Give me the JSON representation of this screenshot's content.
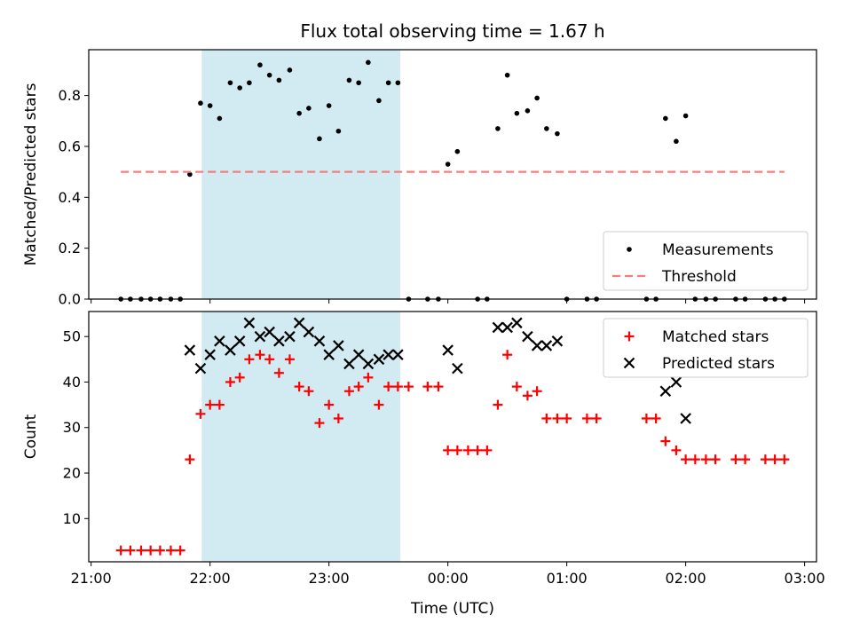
{
  "chart_data": {
    "title": "Flux total observing time = 1.67 h",
    "xlabel": "Time (UTC)",
    "x_ticks": [
      "21:00",
      "22:00",
      "23:00",
      "00:00",
      "01:00",
      "02:00",
      "03:00"
    ],
    "x_range_hours": [
      20.98,
      27.1
    ],
    "highlight_span_hours": [
      21.93,
      23.6
    ],
    "highlight_color": "#add8e6",
    "panels": [
      {
        "type": "scatter",
        "ylabel": "Matched/Predicted stars",
        "ylim": [
          0,
          0.98
        ],
        "y_ticks": [
          0.0,
          0.2,
          0.4,
          0.6,
          0.8
        ],
        "y_tick_labels": [
          "0.0",
          "0.2",
          "0.4",
          "0.6",
          "0.8"
        ],
        "legend_position": "lower-right",
        "series": [
          {
            "name": "Measurements",
            "marker": "dot",
            "color": "#000000",
            "points": [
              [
                21.25,
                0.0
              ],
              [
                21.33,
                0.0
              ],
              [
                21.42,
                0.0
              ],
              [
                21.5,
                0.0
              ],
              [
                21.58,
                0.0
              ],
              [
                21.67,
                0.0
              ],
              [
                21.75,
                0.0
              ],
              [
                21.83,
                0.49
              ],
              [
                21.92,
                0.77
              ],
              [
                22.0,
                0.76
              ],
              [
                22.08,
                0.71
              ],
              [
                22.17,
                0.85
              ],
              [
                22.25,
                0.83
              ],
              [
                22.33,
                0.85
              ],
              [
                22.42,
                0.92
              ],
              [
                22.5,
                0.88
              ],
              [
                22.58,
                0.86
              ],
              [
                22.67,
                0.9
              ],
              [
                22.75,
                0.73
              ],
              [
                22.83,
                0.75
              ],
              [
                22.92,
                0.63
              ],
              [
                23.0,
                0.76
              ],
              [
                23.08,
                0.66
              ],
              [
                23.17,
                0.86
              ],
              [
                23.25,
                0.85
              ],
              [
                23.33,
                0.93
              ],
              [
                23.42,
                0.78
              ],
              [
                23.5,
                0.85
              ],
              [
                23.58,
                0.85
              ],
              [
                23.67,
                0.0
              ],
              [
                23.83,
                0.0
              ],
              [
                23.92,
                0.0
              ],
              [
                24.0,
                0.53
              ],
              [
                24.08,
                0.58
              ],
              [
                24.25,
                0.0
              ],
              [
                24.33,
                0.0
              ],
              [
                24.42,
                0.67
              ],
              [
                24.5,
                0.88
              ],
              [
                24.58,
                0.73
              ],
              [
                24.67,
                0.74
              ],
              [
                24.75,
                0.79
              ],
              [
                24.83,
                0.67
              ],
              [
                24.92,
                0.65
              ],
              [
                25.0,
                0.0
              ],
              [
                25.17,
                0.0
              ],
              [
                25.25,
                0.0
              ],
              [
                25.67,
                0.0
              ],
              [
                25.75,
                0.0
              ],
              [
                25.83,
                0.71
              ],
              [
                25.92,
                0.62
              ],
              [
                26.0,
                0.72
              ],
              [
                26.08,
                0.0
              ],
              [
                26.17,
                0.0
              ],
              [
                26.25,
                0.0
              ],
              [
                26.42,
                0.0
              ],
              [
                26.5,
                0.0
              ],
              [
                26.67,
                0.0
              ],
              [
                26.75,
                0.0
              ],
              [
                26.83,
                0.0
              ]
            ]
          },
          {
            "name": "Threshold",
            "type": "line",
            "style": "dashed",
            "color": "#f08080",
            "points": [
              [
                21.25,
                0.5
              ],
              [
                26.83,
                0.5
              ]
            ]
          }
        ]
      },
      {
        "type": "scatter",
        "ylabel": "Count",
        "ylim": [
          0.5,
          55.5
        ],
        "y_ticks": [
          10,
          20,
          30,
          40,
          50
        ],
        "y_tick_labels": [
          "10",
          "20",
          "30",
          "40",
          "50"
        ],
        "legend_position": "upper-right",
        "series": [
          {
            "name": "Matched stars",
            "marker": "plus",
            "color": "#ff0000",
            "points": [
              [
                21.25,
                3
              ],
              [
                21.33,
                3
              ],
              [
                21.42,
                3
              ],
              [
                21.5,
                3
              ],
              [
                21.58,
                3
              ],
              [
                21.67,
                3
              ],
              [
                21.75,
                3
              ],
              [
                21.83,
                23
              ],
              [
                21.92,
                33
              ],
              [
                22.0,
                35
              ],
              [
                22.08,
                35
              ],
              [
                22.17,
                40
              ],
              [
                22.25,
                41
              ],
              [
                22.33,
                45
              ],
              [
                22.42,
                46
              ],
              [
                22.5,
                45
              ],
              [
                22.58,
                42
              ],
              [
                22.67,
                45
              ],
              [
                22.75,
                39
              ],
              [
                22.83,
                38
              ],
              [
                22.92,
                31
              ],
              [
                23.0,
                35
              ],
              [
                23.08,
                32
              ],
              [
                23.17,
                38
              ],
              [
                23.25,
                39
              ],
              [
                23.33,
                41
              ],
              [
                23.42,
                35
              ],
              [
                23.5,
                39
              ],
              [
                23.58,
                39
              ],
              [
                23.67,
                39
              ],
              [
                23.83,
                39
              ],
              [
                23.92,
                39
              ],
              [
                24.0,
                25
              ],
              [
                24.08,
                25
              ],
              [
                24.17,
                25
              ],
              [
                24.25,
                25
              ],
              [
                24.33,
                25
              ],
              [
                24.42,
                35
              ],
              [
                24.5,
                46
              ],
              [
                24.58,
                39
              ],
              [
                24.67,
                37
              ],
              [
                24.75,
                38
              ],
              [
                24.83,
                32
              ],
              [
                24.92,
                32
              ],
              [
                25.0,
                32
              ],
              [
                25.17,
                32
              ],
              [
                25.25,
                32
              ],
              [
                25.67,
                32
              ],
              [
                25.75,
                32
              ],
              [
                25.83,
                27
              ],
              [
                25.92,
                25
              ],
              [
                26.0,
                23
              ],
              [
                26.08,
                23
              ],
              [
                26.17,
                23
              ],
              [
                26.25,
                23
              ],
              [
                26.42,
                23
              ],
              [
                26.5,
                23
              ],
              [
                26.67,
                23
              ],
              [
                26.75,
                23
              ],
              [
                26.83,
                23
              ]
            ]
          },
          {
            "name": "Predicted stars",
            "marker": "x",
            "color": "#000000",
            "points": [
              [
                21.83,
                47
              ],
              [
                21.92,
                43
              ],
              [
                22.0,
                46
              ],
              [
                22.08,
                49
              ],
              [
                22.17,
                47
              ],
              [
                22.25,
                49
              ],
              [
                22.33,
                53
              ],
              [
                22.42,
                50
              ],
              [
                22.5,
                51
              ],
              [
                22.58,
                49
              ],
              [
                22.67,
                50
              ],
              [
                22.75,
                53
              ],
              [
                22.83,
                51
              ],
              [
                22.92,
                49
              ],
              [
                23.0,
                46
              ],
              [
                23.08,
                48
              ],
              [
                23.17,
                44
              ],
              [
                23.25,
                46
              ],
              [
                23.33,
                44
              ],
              [
                23.42,
                45
              ],
              [
                23.5,
                46
              ],
              [
                23.58,
                46
              ],
              [
                24.0,
                47
              ],
              [
                24.08,
                43
              ],
              [
                24.42,
                52
              ],
              [
                24.5,
                52
              ],
              [
                24.58,
                53
              ],
              [
                24.67,
                50
              ],
              [
                24.75,
                48
              ],
              [
                24.83,
                48
              ],
              [
                24.92,
                49
              ],
              [
                25.83,
                38
              ],
              [
                25.92,
                40
              ],
              [
                26.0,
                32
              ]
            ]
          }
        ]
      }
    ]
  }
}
